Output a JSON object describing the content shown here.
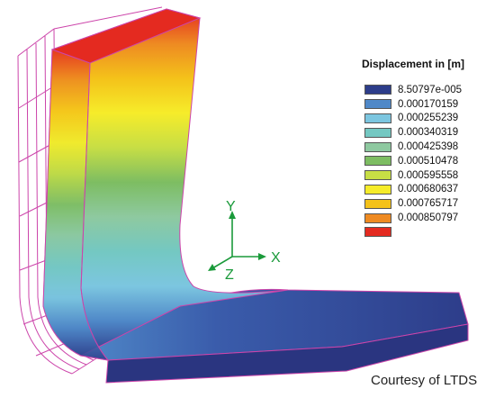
{
  "legend": {
    "title": "Displacement in [m]",
    "items": [
      {
        "label": "8.50797e-005",
        "color": "#2d3d8a"
      },
      {
        "label": "0.000170159",
        "color": "#4f88c8"
      },
      {
        "label": "0.000255239",
        "color": "#7cc6e0"
      },
      {
        "label": "0.000340319",
        "color": "#74c8c2"
      },
      {
        "label": "0.000425398",
        "color": "#8ec9a0"
      },
      {
        "label": "0.000510478",
        "color": "#7dbd62"
      },
      {
        "label": "0.000595558",
        "color": "#c7de45"
      },
      {
        "label": "0.000680637",
        "color": "#f6ec2a"
      },
      {
        "label": "0.000765717",
        "color": "#f4c21a"
      },
      {
        "label": "0.000850797",
        "color": "#ee8a22"
      },
      {
        "label": "",
        "color": "#e42a20"
      }
    ]
  },
  "axes": {
    "y_label": "Y",
    "x_label": "X",
    "z_label": "Z",
    "color": "#1a9a3a"
  },
  "credit": "Courtesy of LTDS",
  "wireframe_color": "#cc44aa"
}
